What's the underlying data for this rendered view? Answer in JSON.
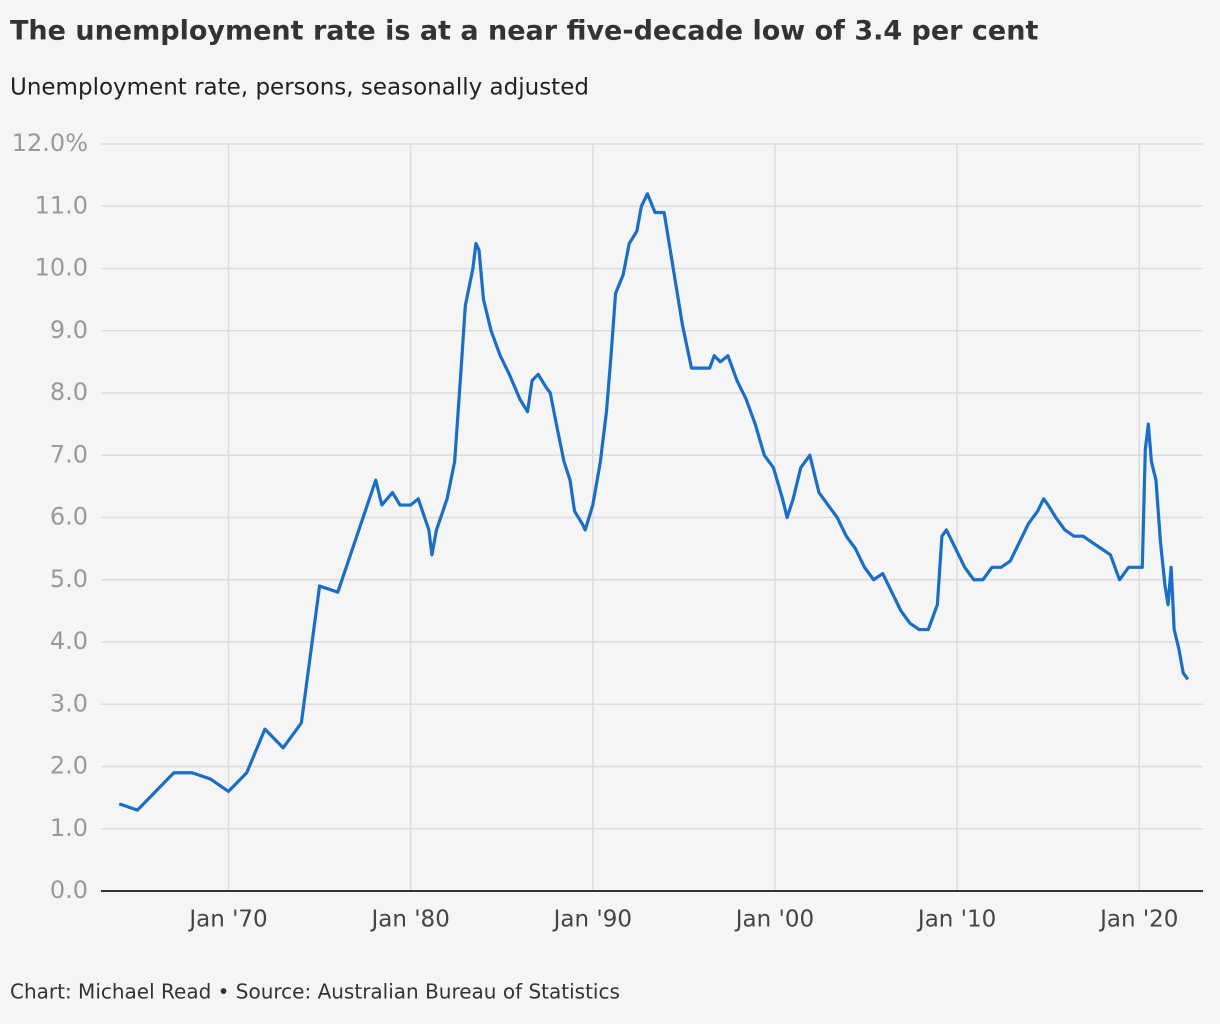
{
  "chart_data": {
    "type": "line",
    "title": "The unemployment rate is at a near five-decade low of 3.4 per cent",
    "subtitle": "Unemployment rate, persons, seasonally adjusted",
    "footer": "Chart: Michael Read • Source: Australian Bureau of Statistics",
    "grid": true,
    "xlim": [
      "1963-01",
      "2023-07"
    ],
    "ylim": [
      0,
      12
    ],
    "xticks": [
      {
        "value": "1970-01",
        "label": "Jan '70"
      },
      {
        "value": "1980-01",
        "label": "Jan '80"
      },
      {
        "value": "1990-01",
        "label": "Jan '90"
      },
      {
        "value": "2000-01",
        "label": "Jan '00"
      },
      {
        "value": "2010-01",
        "label": "Jan '10"
      },
      {
        "value": "2020-01",
        "label": "Jan '20"
      }
    ],
    "yticks": [
      {
        "value": 0,
        "label": "0.0"
      },
      {
        "value": 1,
        "label": "1.0"
      },
      {
        "value": 2,
        "label": "2.0"
      },
      {
        "value": 3,
        "label": "3.0"
      },
      {
        "value": 4,
        "label": "4.0"
      },
      {
        "value": 5,
        "label": "5.0"
      },
      {
        "value": 6,
        "label": "6.0"
      },
      {
        "value": 7,
        "label": "7.0"
      },
      {
        "value": 8,
        "label": "8.0"
      },
      {
        "value": 9,
        "label": "9.0"
      },
      {
        "value": 10,
        "label": "10.0"
      },
      {
        "value": 11,
        "label": "11.0"
      },
      {
        "value": 12,
        "label": "12.0%"
      }
    ],
    "x": [
      "1964-01",
      "1965-01",
      "1967-01",
      "1968-01",
      "1969-01",
      "1970-01",
      "1971-01",
      "1972-01",
      "1973-01",
      "1974-01",
      "1975-01",
      "1976-01",
      "1978-02",
      "1978-06",
      "1979-01",
      "1979-06",
      "1980-01",
      "1980-06",
      "1981-01",
      "1981-03",
      "1981-06",
      "1982-01",
      "1982-06",
      "1982-10",
      "1983-01",
      "1983-06",
      "1983-08",
      "1983-10",
      "1984-01",
      "1984-06",
      "1984-12",
      "1985-06",
      "1986-01",
      "1986-06",
      "1986-09",
      "1987-01",
      "1987-06",
      "1987-09",
      "1988-01",
      "1988-06",
      "1988-10",
      "1989-01",
      "1989-06",
      "1989-08",
      "1990-01",
      "1990-06",
      "1990-10",
      "1991-01",
      "1991-04",
      "1991-09",
      "1992-01",
      "1992-06",
      "1992-09",
      "1993-01",
      "1993-06",
      "1993-12",
      "1994-06",
      "1994-12",
      "1995-06",
      "1995-12",
      "1996-06",
      "1996-09",
      "1997-01",
      "1997-06",
      "1997-12",
      "1998-06",
      "1998-12",
      "1999-06",
      "1999-12",
      "2000-06",
      "2000-09",
      "2001-01",
      "2001-06",
      "2001-09",
      "2001-12",
      "2002-06",
      "2002-12",
      "2003-06",
      "2003-12",
      "2004-06",
      "2004-12",
      "2005-06",
      "2005-12",
      "2006-06",
      "2006-12",
      "2007-06",
      "2007-12",
      "2008-06",
      "2008-12",
      "2009-03",
      "2009-06",
      "2009-12",
      "2010-06",
      "2010-12",
      "2011-06",
      "2011-12",
      "2012-06",
      "2012-12",
      "2013-06",
      "2013-12",
      "2014-06",
      "2014-10",
      "2015-01",
      "2015-06",
      "2015-12",
      "2016-06",
      "2016-12",
      "2017-06",
      "2017-12",
      "2018-06",
      "2018-12",
      "2019-06",
      "2019-12",
      "2020-03",
      "2020-05",
      "2020-07",
      "2020-09",
      "2020-12",
      "2021-03",
      "2021-06",
      "2021-08",
      "2021-10",
      "2021-12",
      "2022-03",
      "2022-06",
      "2022-09"
    ],
    "series": [
      {
        "name": "Unemployment rate",
        "color": "#1a6ec6",
        "values": [
          1.4,
          1.3,
          1.9,
          1.9,
          1.8,
          1.6,
          1.9,
          2.6,
          2.3,
          2.7,
          4.9,
          4.8,
          6.6,
          6.2,
          6.4,
          6.2,
          6.2,
          6.3,
          5.8,
          5.4,
          5.8,
          6.3,
          6.9,
          8.3,
          9.4,
          10.0,
          10.4,
          10.3,
          9.5,
          9.0,
          8.6,
          8.3,
          7.9,
          7.7,
          8.2,
          8.3,
          8.1,
          8.0,
          7.5,
          6.9,
          6.6,
          6.1,
          5.9,
          5.8,
          6.2,
          6.9,
          7.7,
          8.6,
          9.6,
          9.9,
          10.4,
          10.6,
          11.0,
          11.2,
          10.9,
          10.9,
          10.0,
          9.1,
          8.4,
          8.4,
          8.4,
          8.6,
          8.5,
          8.6,
          8.2,
          7.9,
          7.5,
          7.0,
          6.8,
          6.3,
          6.0,
          6.3,
          6.8,
          6.9,
          7.0,
          6.4,
          6.2,
          6.0,
          5.7,
          5.5,
          5.2,
          5.0,
          5.1,
          4.8,
          4.5,
          4.3,
          4.2,
          4.2,
          4.6,
          5.7,
          5.8,
          5.5,
          5.2,
          5.0,
          5.0,
          5.2,
          5.2,
          5.3,
          5.6,
          5.9,
          6.1,
          6.3,
          6.2,
          6.0,
          5.8,
          5.7,
          5.7,
          5.6,
          5.5,
          5.4,
          5.0,
          5.2,
          5.2,
          5.2,
          7.1,
          7.5,
          6.9,
          6.6,
          5.6,
          4.9,
          4.6,
          5.2,
          4.2,
          3.9,
          3.5,
          3.4
        ]
      }
    ]
  }
}
